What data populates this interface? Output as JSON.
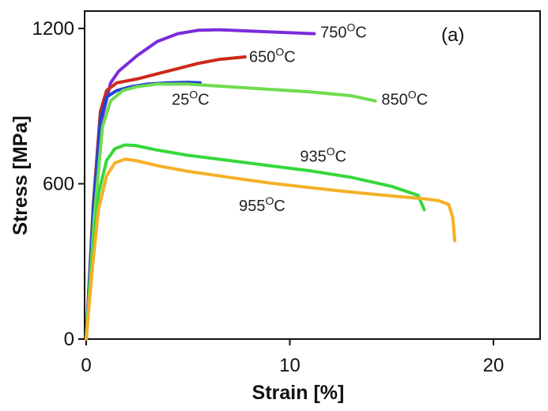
{
  "chart_data": {
    "type": "line",
    "panel_label": "(a)",
    "xlabel": "Strain [%]",
    "ylabel": "Stress [MPa]",
    "xlim": [
      0,
      20
    ],
    "ylim": [
      0,
      1200
    ],
    "x_ticks": [
      0,
      10,
      20
    ],
    "x_tick_labels": [
      "0",
      "10",
      "20"
    ],
    "y_ticks": [
      0,
      600,
      1200
    ],
    "y_tick_labels": [
      "0",
      "600",
      "1200"
    ],
    "grid": false,
    "legend": "none",
    "series": [
      {
        "color": "#7b2cdc",
        "x": [
          0,
          0.4,
          0.8,
          1.2,
          1.6,
          2.5,
          3.5,
          4.5,
          5.5,
          6.5,
          8,
          9.5,
          11.2
        ],
        "y": [
          0,
          480,
          860,
          990,
          1035,
          1095,
          1150,
          1180,
          1193,
          1195,
          1190,
          1185,
          1180
        ]
      },
      {
        "color": "#cc2a18",
        "x": [
          0,
          0.35,
          0.7,
          1.0,
          1.5,
          2.5,
          3.5,
          4.5,
          5.5,
          6.5,
          7.8
        ],
        "y": [
          0,
          520,
          880,
          960,
          990,
          1005,
          1025,
          1045,
          1065,
          1080,
          1090
        ]
      },
      {
        "color": "#2244d8",
        "x": [
          0,
          0.35,
          0.7,
          1.0,
          1.5,
          2.2,
          3.0,
          4.0,
          5.0,
          5.6
        ],
        "y": [
          0,
          500,
          850,
          935,
          960,
          975,
          985,
          990,
          992,
          990
        ]
      },
      {
        "color": "#6fdc4e",
        "x": [
          0,
          0.4,
          0.8,
          1.2,
          1.8,
          2.5,
          3.5,
          5,
          7,
          9,
          11,
          13,
          14.2
        ],
        "y": [
          0,
          470,
          820,
          920,
          960,
          975,
          985,
          985,
          975,
          965,
          955,
          940,
          920
        ]
      },
      {
        "color": "#36d83a",
        "x": [
          0,
          0.3,
          0.6,
          1.0,
          1.4,
          1.9,
          2.4,
          3.5,
          5,
          7,
          9,
          11,
          13,
          15,
          16.3,
          16.6
        ],
        "y": [
          0,
          310,
          560,
          690,
          735,
          750,
          748,
          730,
          710,
          690,
          670,
          650,
          625,
          590,
          555,
          500
        ]
      },
      {
        "color": "#f5b026",
        "x": [
          0,
          0.3,
          0.6,
          1.0,
          1.4,
          1.9,
          2.4,
          3.5,
          5,
          7,
          9,
          11,
          13,
          15,
          16.5,
          17.3,
          17.8,
          18.0,
          18.1
        ],
        "y": [
          0,
          270,
          500,
          630,
          680,
          695,
          690,
          670,
          648,
          625,
          603,
          585,
          568,
          553,
          543,
          535,
          520,
          470,
          380
        ]
      }
    ],
    "annotations": [
      {
        "value": "750",
        "sup": "O",
        "unit": "C",
        "x": 11.5,
        "y": 1165
      },
      {
        "value": "650",
        "sup": "O",
        "unit": "C",
        "x": 8.0,
        "y": 1070
      },
      {
        "value": "25",
        "sup": "O",
        "unit": "C",
        "x": 4.2,
        "y": 905
      },
      {
        "value": "850",
        "sup": "O",
        "unit": "C",
        "x": 14.5,
        "y": 905
      },
      {
        "value": "935",
        "sup": "O",
        "unit": "C",
        "x": 10.5,
        "y": 685
      },
      {
        "value": "955",
        "sup": "O",
        "unit": "C",
        "x": 7.5,
        "y": 495
      }
    ]
  }
}
